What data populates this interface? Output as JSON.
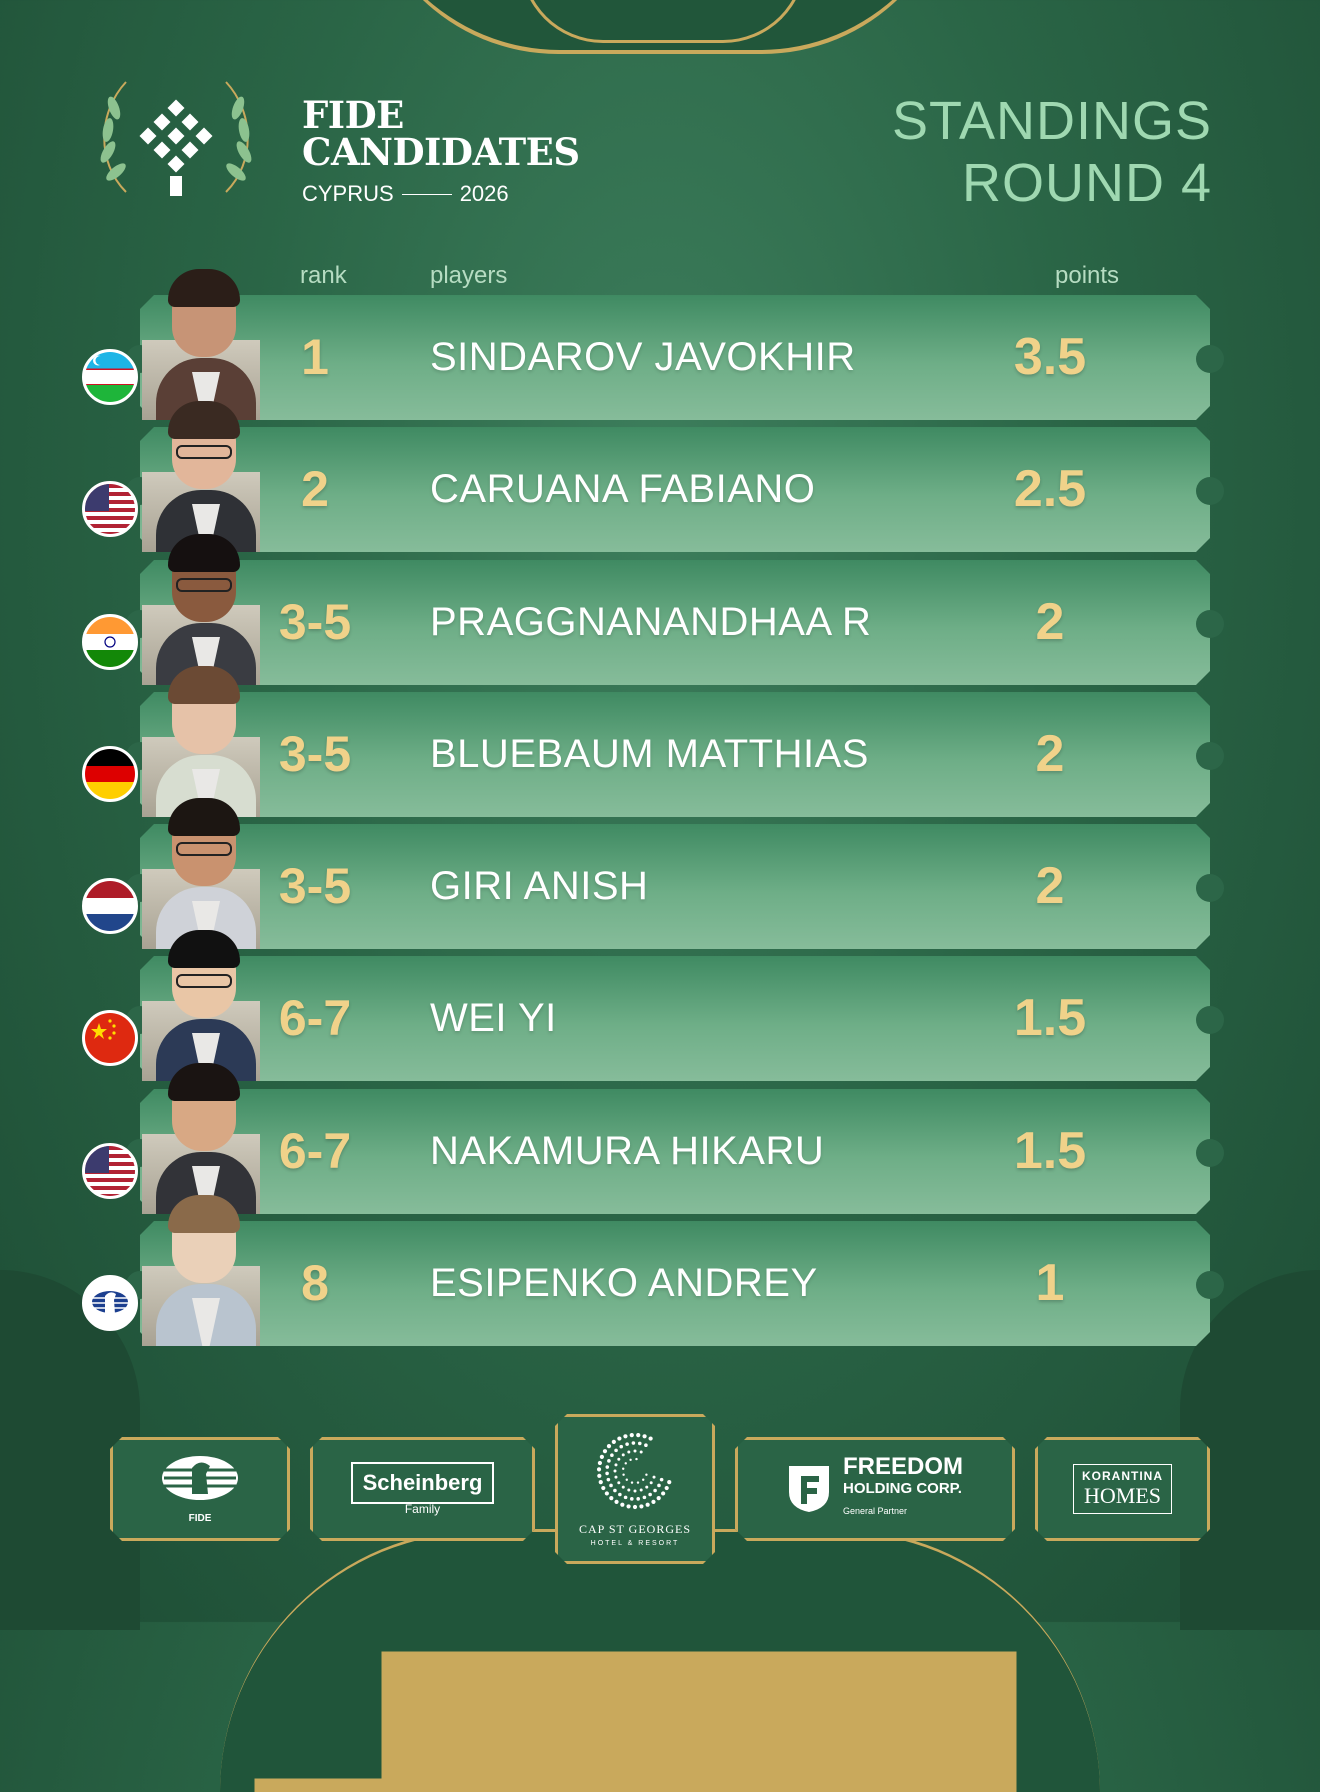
{
  "header": {
    "brand_line1": "FIDE",
    "brand_line2": "CANDIDATES",
    "brand_location": "CYPRUS",
    "brand_year": "2026",
    "title_line1": "STANDINGS",
    "title_line2": "ROUND 4"
  },
  "columns": {
    "rank": "rank",
    "players": "players",
    "points": "points"
  },
  "players": [
    {
      "rank": "1",
      "name": "SINDAROV JAVOKHIR",
      "points": "3.5",
      "flag": "uzbekistan-flag-icon"
    },
    {
      "rank": "2",
      "name": "CARUANA FABIANO",
      "points": "2.5",
      "flag": "usa-flag-icon"
    },
    {
      "rank": "3-5",
      "name": "PRAGGNANANDHAA R",
      "points": "2",
      "flag": "india-flag-icon"
    },
    {
      "rank": "3-5",
      "name": "BLUEBAUM MATTHIAS",
      "points": "2",
      "flag": "germany-flag-icon"
    },
    {
      "rank": "3-5",
      "name": "GIRI ANISH",
      "points": "2",
      "flag": "netherlands-flag-icon"
    },
    {
      "rank": "6-7",
      "name": "WEI YI",
      "points": "1.5",
      "flag": "china-flag-icon"
    },
    {
      "rank": "6-7",
      "name": "NAKAMURA HIKARU",
      "points": "1.5",
      "flag": "usa-flag-icon"
    },
    {
      "rank": "8",
      "name": "ESIPENKO ANDREY",
      "points": "1",
      "flag": "fide-flag-icon"
    }
  ],
  "sponsors": {
    "fide_label": "FIDE",
    "scheinberg_name": "Scheinberg",
    "scheinberg_sub": "Family",
    "cap_name": "CAP ST GEORGES",
    "cap_sub": "HOTEL & RESORT",
    "freedom_line1": "FREEDOM",
    "freedom_line2": "HOLDING CORP.",
    "freedom_line3": "General Partner",
    "korantina_line1": "KORANTINA",
    "korantina_line2": "HOMES"
  },
  "colors": {
    "background": "#2a6546",
    "gold": "#f0d28a",
    "title_green": "#9fd8b1",
    "border_gold": "#c9a95c"
  }
}
